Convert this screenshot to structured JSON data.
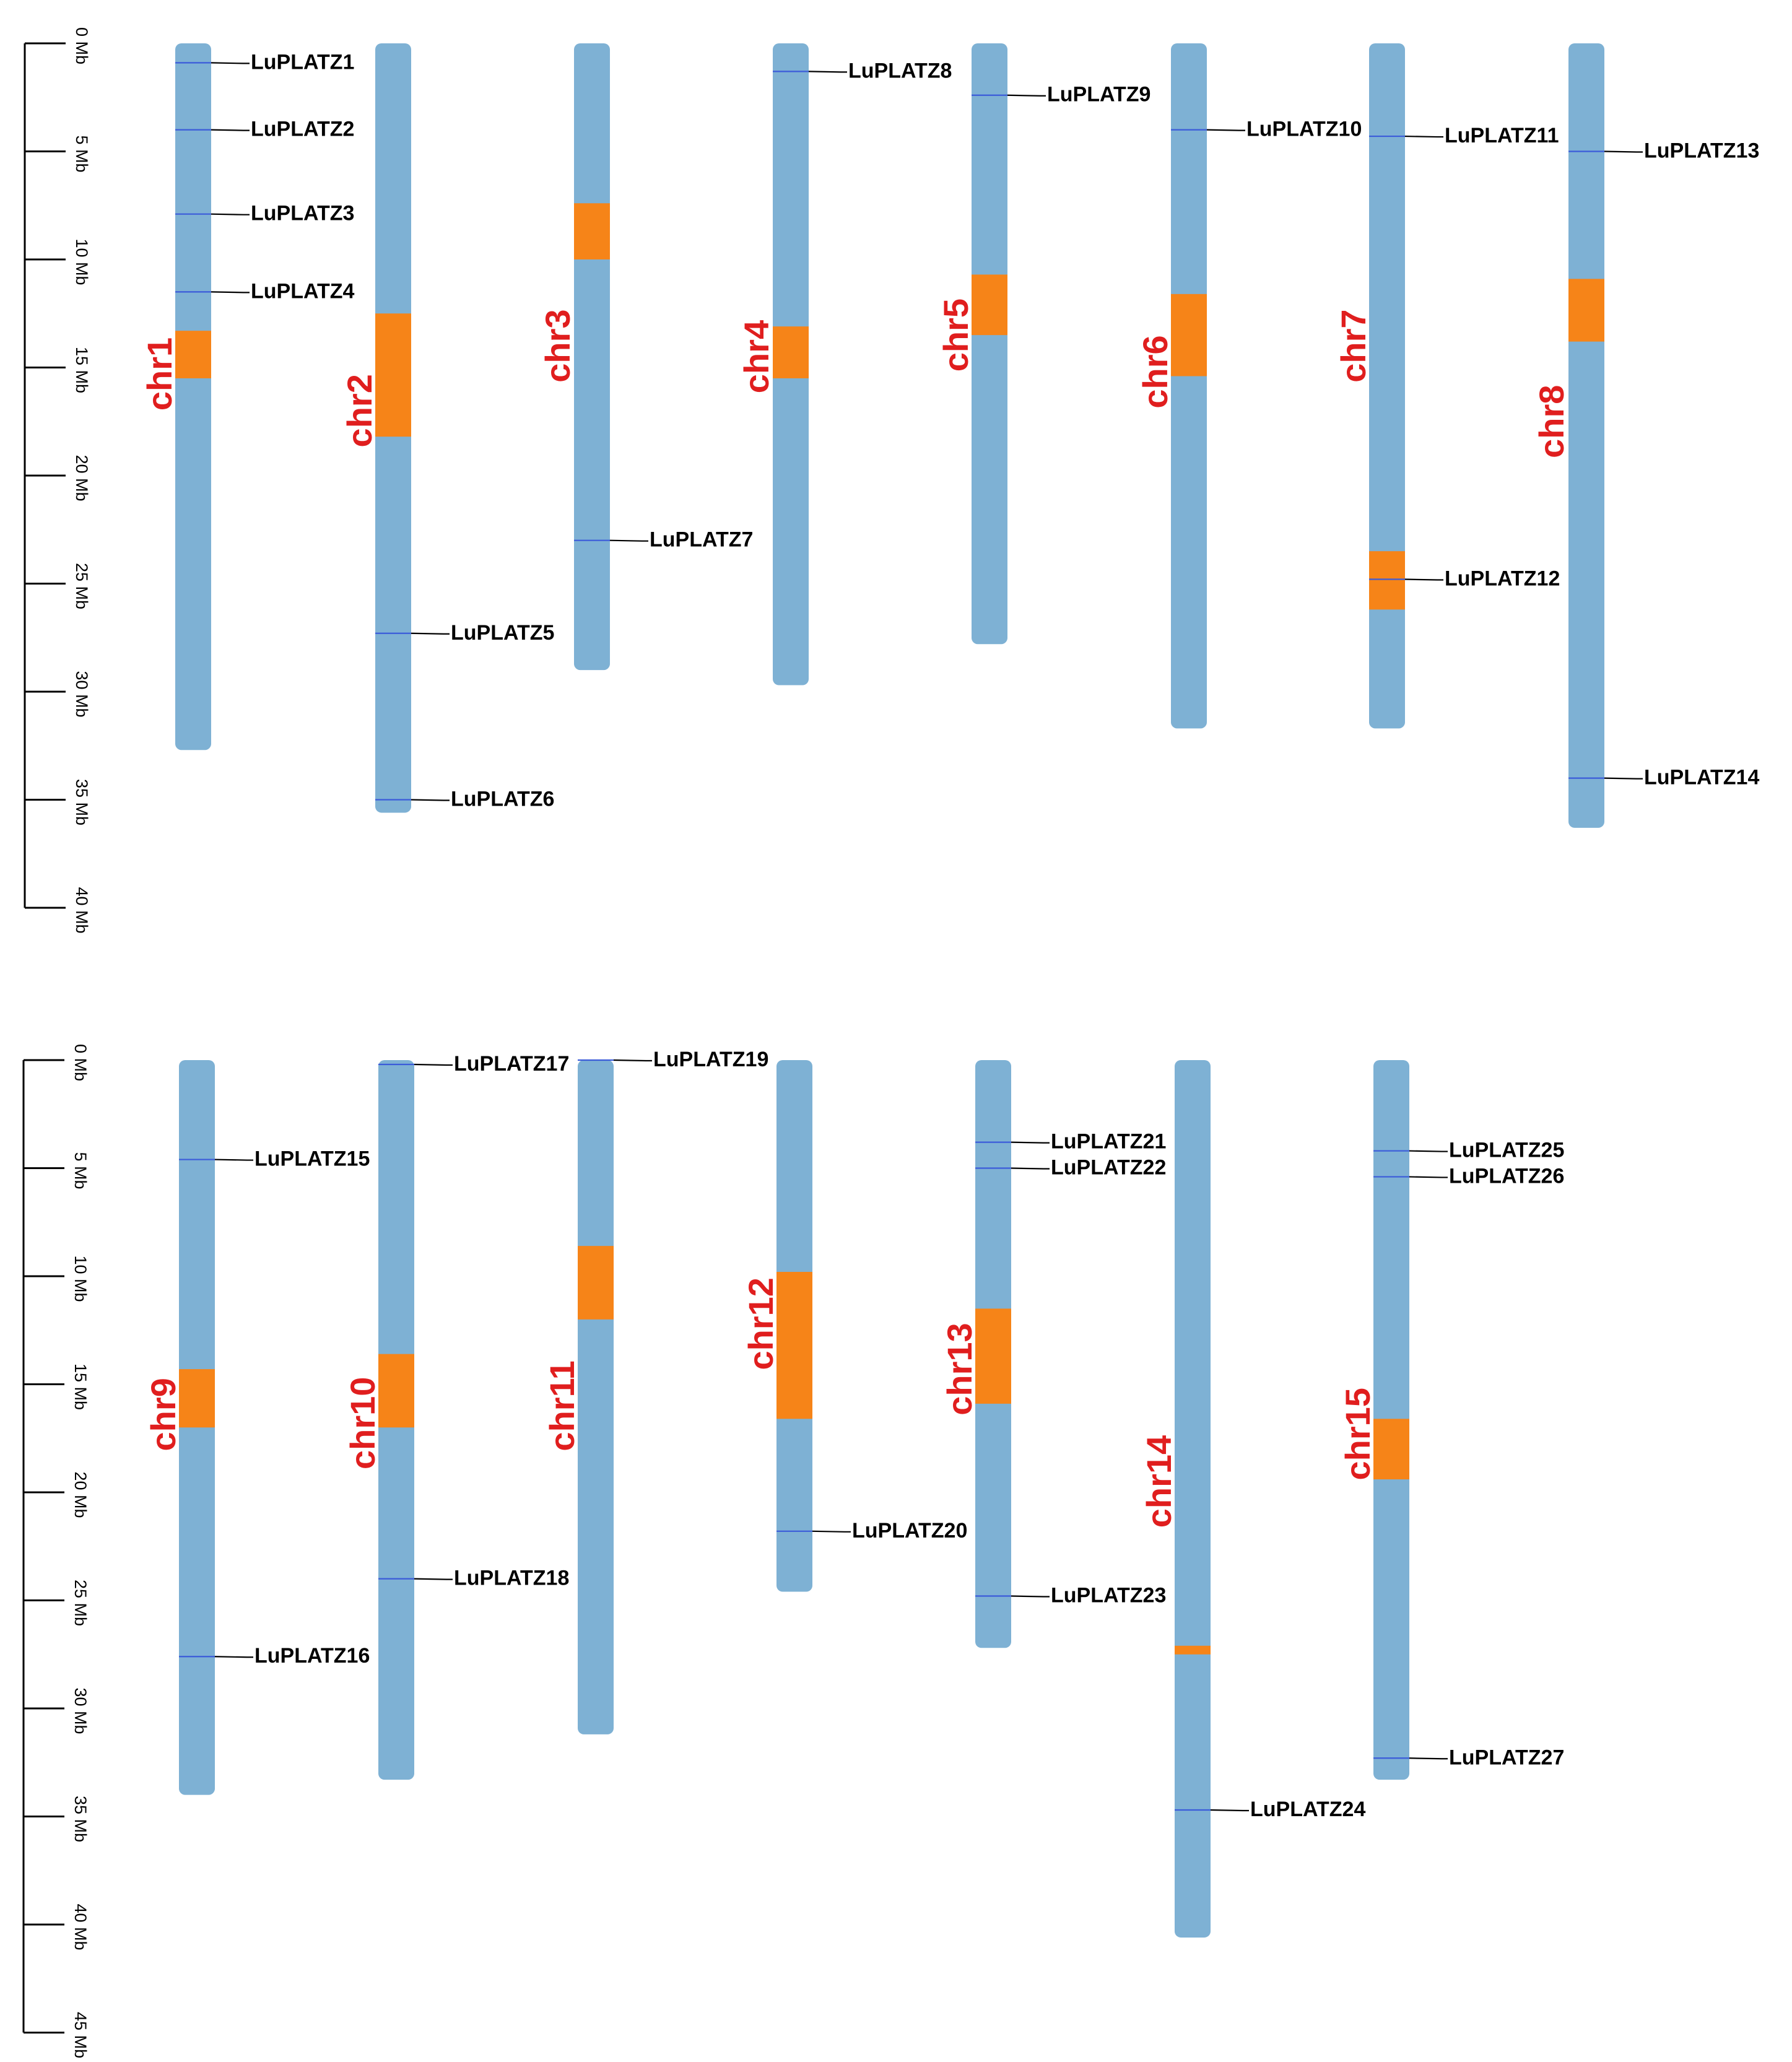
{
  "colors": {
    "chromosome": "#7eb1d4",
    "centromere": "#f68418",
    "gene_mark": "#3b5bd9",
    "chr_label": "#e01e1e",
    "text": "#000000"
  },
  "panels": [
    {
      "id": "top",
      "ruler": {
        "ticks": [
          "0 Mb",
          "5 Mb",
          "10 Mb",
          "15 Mb",
          "20 Mb",
          "25 Mb",
          "30 Mb",
          "35 Mb",
          "40 Mb"
        ],
        "tick_values": [
          0,
          5,
          10,
          15,
          20,
          25,
          30,
          35,
          40
        ],
        "max": 40
      },
      "chromosomes": [
        {
          "name": "chr1",
          "length": 32.7,
          "centromere": [
            13.3,
            15.5
          ],
          "genes": [
            {
              "name": "LuPLATZ1",
              "pos": 0.9
            },
            {
              "name": "LuPLATZ2",
              "pos": 4.0
            },
            {
              "name": "LuPLATZ3",
              "pos": 7.9
            },
            {
              "name": "LuPLATZ4",
              "pos": 11.5
            }
          ]
        },
        {
          "name": "chr2",
          "length": 35.6,
          "centromere": [
            12.5,
            18.2
          ],
          "genes": [
            {
              "name": "LuPLATZ5",
              "pos": 27.3
            },
            {
              "name": "LuPLATZ6",
              "pos": 35.0
            }
          ]
        },
        {
          "name": "chr3",
          "length": 29.0,
          "centromere": [
            7.4,
            10.0
          ],
          "genes": [
            {
              "name": "LuPLATZ7",
              "pos": 23.0
            }
          ]
        },
        {
          "name": "chr4",
          "length": 29.7,
          "centromere": [
            13.1,
            15.5
          ],
          "genes": [
            {
              "name": "LuPLATZ8",
              "pos": 1.3
            }
          ]
        },
        {
          "name": "chr5",
          "length": 27.8,
          "centromere": [
            10.7,
            13.5
          ],
          "genes": [
            {
              "name": "LuPLATZ9",
              "pos": 2.4
            }
          ]
        },
        {
          "name": "chr6",
          "length": 31.7,
          "centromere": [
            11.6,
            15.4
          ],
          "genes": [
            {
              "name": "LuPLATZ10",
              "pos": 4.0
            }
          ]
        },
        {
          "name": "chr7",
          "length": 31.7,
          "centromere": [
            23.5,
            26.2
          ],
          "genes": [
            {
              "name": "LuPLATZ11",
              "pos": 4.3
            },
            {
              "name": "LuPLATZ12",
              "pos": 24.8
            }
          ]
        },
        {
          "name": "chr8",
          "length": 36.3,
          "centromere": [
            10.9,
            13.8
          ],
          "genes": [
            {
              "name": "LuPLATZ13",
              "pos": 5.0
            },
            {
              "name": "LuPLATZ14",
              "pos": 34.0
            }
          ]
        }
      ]
    },
    {
      "id": "bottom",
      "ruler": {
        "ticks": [
          "0 Mb",
          "5 Mb",
          "10 Mb",
          "15 Mb",
          "20 Mb",
          "25 Mb",
          "30 Mb",
          "35 Mb",
          "40 Mb",
          "45 Mb"
        ],
        "tick_values": [
          0,
          5,
          10,
          15,
          20,
          25,
          30,
          35,
          40,
          45
        ],
        "max": 45
      },
      "chromosomes": [
        {
          "name": "chr9",
          "length": 34.0,
          "centromere": [
            14.3,
            17.0
          ],
          "genes": [
            {
              "name": "LuPLATZ15",
              "pos": 4.6
            },
            {
              "name": "LuPLATZ16",
              "pos": 27.6
            }
          ]
        },
        {
          "name": "chr10",
          "length": 33.3,
          "centromere": [
            13.6,
            17.0
          ],
          "genes": [
            {
              "name": "LuPLATZ17",
              "pos": 0.2
            },
            {
              "name": "LuPLATZ18",
              "pos": 24.0
            }
          ]
        },
        {
          "name": "chr11",
          "length": 31.2,
          "centromere": [
            8.6,
            12.0
          ],
          "genes": [
            {
              "name": "LuPLATZ19",
              "pos": 0.0
            }
          ]
        },
        {
          "name": "chr12",
          "length": 24.6,
          "centromere": [
            9.8,
            16.6
          ],
          "genes": [
            {
              "name": "LuPLATZ20",
              "pos": 21.8
            }
          ]
        },
        {
          "name": "chr13",
          "length": 27.2,
          "centromere": [
            11.5,
            15.9
          ],
          "genes": [
            {
              "name": "LuPLATZ21",
              "pos": 3.8
            },
            {
              "name": "LuPLATZ22",
              "pos": 5.0
            },
            {
              "name": "LuPLATZ23",
              "pos": 24.8
            }
          ]
        },
        {
          "name": "chr14",
          "length": 40.6,
          "centromere": [
            27.1,
            27.5
          ],
          "genes": [
            {
              "name": "LuPLATZ24",
              "pos": 34.7
            }
          ]
        },
        {
          "name": "chr15",
          "length": 33.3,
          "centromere": [
            16.6,
            19.4
          ],
          "genes": [
            {
              "name": "LuPLATZ25",
              "pos": 4.2
            },
            {
              "name": "LuPLATZ26",
              "pos": 5.4
            },
            {
              "name": "LuPLATZ27",
              "pos": 32.3
            }
          ]
        }
      ]
    }
  ]
}
